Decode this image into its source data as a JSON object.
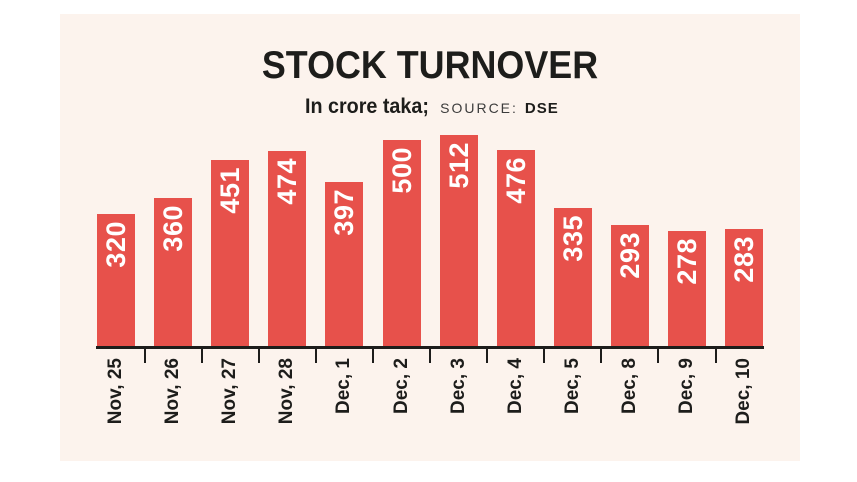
{
  "title": "STOCK TURNOVER",
  "subtitle": {
    "unit": "In crore taka;",
    "source_label": "SOURCE:",
    "source_value": "DSE"
  },
  "colors": {
    "page_bg": "#ffffff",
    "panel_bg": "#fcf3ed",
    "bar": "#e7514b",
    "bar_value_text": "#ffffff",
    "axis": "#1d1d1b",
    "label_text": "#1d1d1b"
  },
  "chart_data": {
    "type": "bar",
    "title": "STOCK TURNOVER",
    "subtitle": "In crore taka; SOURCE: DSE",
    "categories": [
      "Nov, 25",
      "Nov, 26",
      "Nov, 27",
      "Nov, 28",
      "Dec, 1",
      "Dec, 2",
      "Dec, 3",
      "Dec, 4",
      "Dec, 5",
      "Dec, 8",
      "Dec, 9",
      "Dec, 10"
    ],
    "values": [
      320,
      360,
      451,
      474,
      397,
      500,
      512,
      476,
      335,
      293,
      278,
      283
    ],
    "xlabel": "",
    "ylabel": "",
    "ylim": [
      0,
      512
    ],
    "bar_labels_inside": true,
    "bar_label_rotation_deg": -90,
    "tick_label_rotation_deg": -90,
    "grid": false,
    "legend": false
  }
}
